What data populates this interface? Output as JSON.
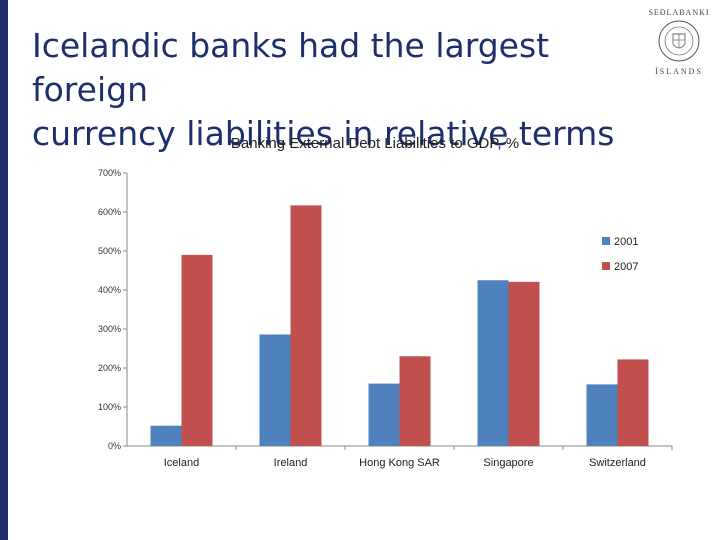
{
  "slide": {
    "title_line1": "Icelandic banks had the largest foreign",
    "title_line2": "currency liabilities in relative terms",
    "logo_text_top": "SEÐLABANKI",
    "logo_text_bottom": "ÍSLANDS"
  },
  "colors": {
    "title": "#1f2f6e",
    "stripe": "#1f2f6e",
    "series_2001": "#4f81bd",
    "series_2007": "#c0504d"
  },
  "chart_data": {
    "type": "bar",
    "title": "Banking External Debt Liabilities to GDP, %",
    "xlabel": "",
    "ylabel": "",
    "categories": [
      "Iceland",
      "Ireland",
      "Hong Kong SAR",
      "Singapore",
      "Switzerland"
    ],
    "series": [
      {
        "name": "2001",
        "values": [
          52,
          286,
          160,
          425,
          158
        ],
        "color": "#4f81bd"
      },
      {
        "name": "2007",
        "values": [
          490,
          617,
          230,
          421,
          222
        ],
        "color": "#c0504d"
      }
    ],
    "ylim": [
      0,
      700
    ],
    "yticks": [
      "0%",
      "100%",
      "200%",
      "300%",
      "400%",
      "500%",
      "600%",
      "700%"
    ],
    "grid": false,
    "legend": "right"
  }
}
